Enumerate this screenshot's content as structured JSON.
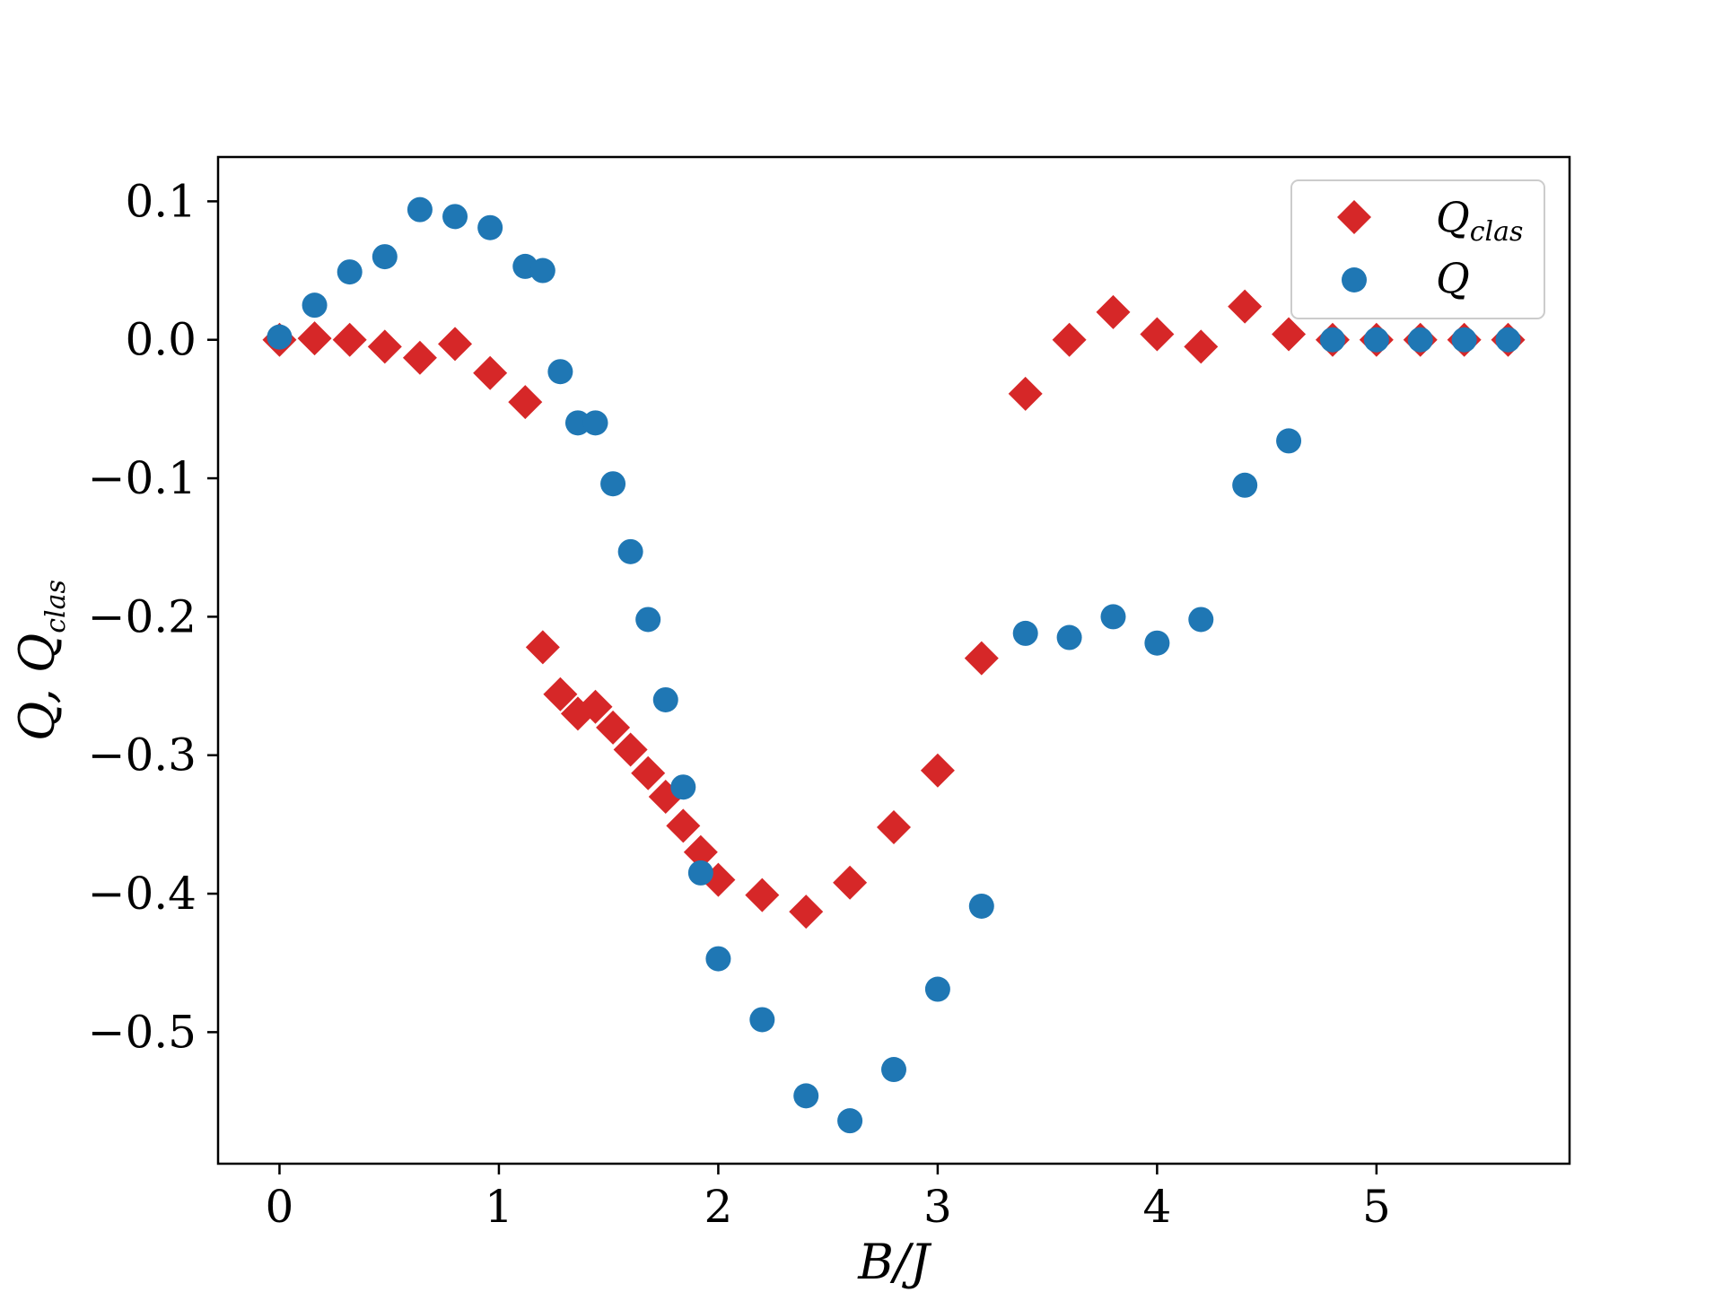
{
  "chart_data": {
    "type": "scatter",
    "xlabel": "B/J",
    "ylabel": "Q, Q_clas",
    "xlim": [
      -0.28,
      5.88
    ],
    "ylim": [
      -0.595,
      0.132
    ],
    "xticks": [
      0,
      1,
      2,
      3,
      4,
      5
    ],
    "yticks": [
      0.1,
      0.0,
      -0.1,
      -0.2,
      -0.3,
      -0.4,
      -0.5
    ],
    "xtick_labels": [
      "0",
      "1",
      "2",
      "3",
      "4",
      "5"
    ],
    "ytick_labels": [
      "0.1",
      "0.0",
      "−0.1",
      "−0.2",
      "−0.3",
      "−0.4",
      "−0.5"
    ],
    "grid": false,
    "legend_position": "top-right",
    "legend": [
      {
        "main": "Q",
        "sub": "clas",
        "marker": "diamond",
        "color": "#d62728"
      },
      {
        "main": "Q",
        "sub": "",
        "marker": "circle",
        "color": "#1f77b4"
      }
    ],
    "series": [
      {
        "name": "Q_clas",
        "marker": "diamond",
        "color": "#d62728",
        "x": [
          0.0,
          0.16,
          0.32,
          0.48,
          0.64,
          0.8,
          0.96,
          1.12,
          1.2,
          1.28,
          1.36,
          1.44,
          1.52,
          1.6,
          1.68,
          1.76,
          1.84,
          1.92,
          2.0,
          2.2,
          2.4,
          2.6,
          2.8,
          3.0,
          3.2,
          3.4,
          3.6,
          3.8,
          4.0,
          4.2,
          4.4,
          4.6,
          4.8,
          5.0,
          5.2,
          5.4,
          5.6
        ],
        "y": [
          0.0,
          0.001,
          0.0,
          -0.005,
          -0.013,
          -0.003,
          -0.024,
          -0.045,
          -0.222,
          -0.256,
          -0.27,
          -0.265,
          -0.28,
          -0.296,
          -0.313,
          -0.33,
          -0.351,
          -0.37,
          -0.39,
          -0.401,
          -0.413,
          -0.392,
          -0.352,
          -0.311,
          -0.23,
          -0.039,
          0.0,
          0.02,
          0.004,
          -0.005,
          0.024,
          0.004,
          0.0,
          0.0,
          0.0,
          0.0,
          0.0
        ]
      },
      {
        "name": "Q",
        "marker": "circle",
        "color": "#1f77b4",
        "x": [
          0.0,
          0.16,
          0.32,
          0.48,
          0.64,
          0.8,
          0.96,
          1.12,
          1.2,
          1.28,
          1.36,
          1.44,
          1.52,
          1.6,
          1.68,
          1.76,
          1.84,
          1.92,
          2.0,
          2.2,
          2.4,
          2.6,
          2.8,
          3.0,
          3.2,
          3.4,
          3.6,
          3.8,
          4.0,
          4.2,
          4.4,
          4.6,
          4.8,
          5.0,
          5.2,
          5.4,
          5.6
        ],
        "y": [
          0.002,
          0.025,
          0.049,
          0.06,
          0.094,
          0.089,
          0.081,
          0.053,
          0.05,
          -0.023,
          -0.06,
          -0.06,
          -0.104,
          -0.153,
          -0.202,
          -0.26,
          -0.323,
          -0.385,
          -0.447,
          -0.491,
          -0.546,
          -0.564,
          -0.527,
          -0.469,
          -0.409,
          -0.212,
          -0.215,
          -0.2,
          -0.219,
          -0.202,
          -0.105,
          -0.073,
          0.0,
          0.0,
          0.0,
          0.0,
          0.0
        ]
      }
    ]
  }
}
